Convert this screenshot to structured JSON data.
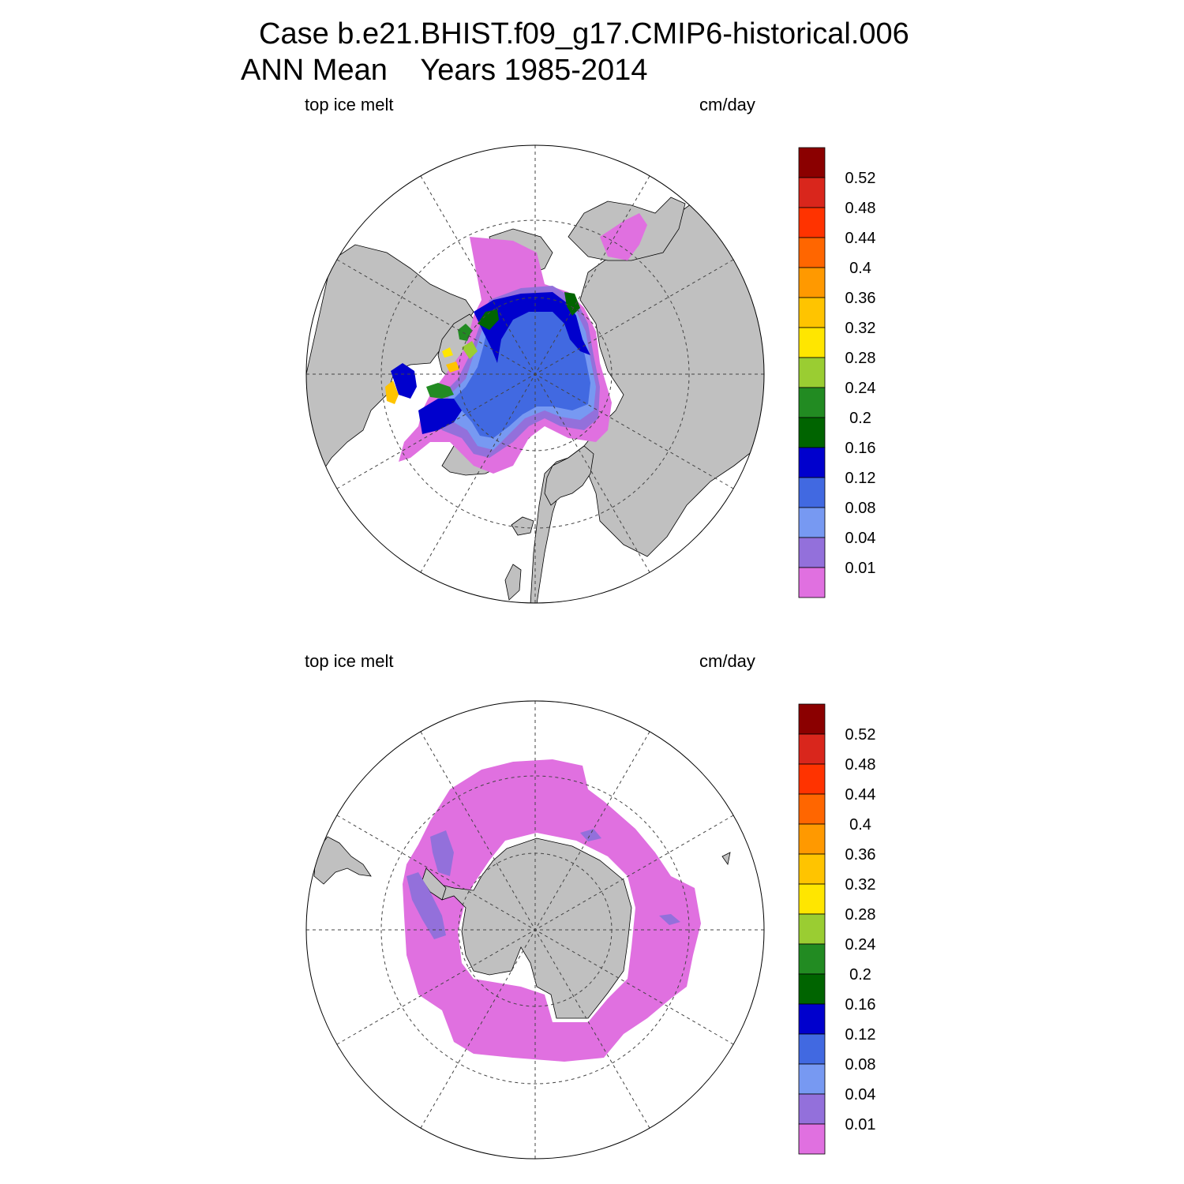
{
  "title": {
    "line1": "Case b.e21.BHIST.f09_g17.CMIP6-historical.006",
    "line2": "ANN Mean    Years 1985-2014"
  },
  "panels": [
    {
      "id": "north",
      "variable_label": "top ice melt",
      "units_label": "cm/day",
      "hemisphere": "Arctic (north polar stereographic)"
    },
    {
      "id": "south",
      "variable_label": "top ice melt",
      "units_label": "cm/day",
      "hemisphere": "Antarctic (south polar stereographic)"
    }
  ],
  "colorbar": {
    "tick_labels": [
      "0.52",
      "0.48",
      "0.44",
      "0.4",
      "0.36",
      "0.32",
      "0.28",
      "0.24",
      "0.2",
      "0.16",
      "0.12",
      "0.08",
      "0.04",
      "0.01"
    ],
    "colors_top_to_bottom": [
      "#8b0000",
      "#d9261c",
      "#ff3300",
      "#ff6600",
      "#ff9900",
      "#ffc400",
      "#ffe600",
      "#9acd32",
      "#228b22",
      "#006400",
      "#0000cd",
      "#4169e1",
      "#7799f2",
      "#9370db",
      "#e070e0"
    ]
  },
  "colors": {
    "land": "#c0c0c0",
    "ocean": "#ffffff",
    "grid": "#444444",
    "ice_low": "#e070e0"
  }
}
